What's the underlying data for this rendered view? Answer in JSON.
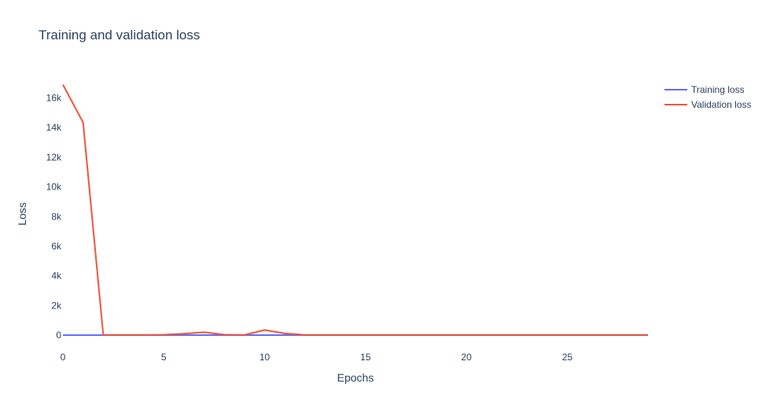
{
  "chart_data": {
    "type": "line",
    "title": "Training and validation loss",
    "xlabel": "Epochs",
    "ylabel": "Loss",
    "xlim": [
      0,
      29
    ],
    "ylim": [
      -950,
      17300
    ],
    "x_ticks": [
      0,
      5,
      10,
      15,
      20,
      25
    ],
    "y_ticks": [
      0,
      2000,
      4000,
      6000,
      8000,
      10000,
      12000,
      14000,
      16000
    ],
    "y_tick_labels": [
      "0",
      "2k",
      "4k",
      "6k",
      "8k",
      "10k",
      "12k",
      "14k",
      "16k"
    ],
    "grid": false,
    "legend_position": "top-right",
    "x": [
      0,
      1,
      2,
      3,
      4,
      5,
      6,
      7,
      8,
      9,
      10,
      11,
      12,
      13,
      14,
      15,
      16,
      17,
      18,
      19,
      20,
      21,
      22,
      23,
      24,
      25,
      26,
      27,
      28,
      29
    ],
    "series": [
      {
        "name": "Training loss",
        "color": "#636efa",
        "values": [
          5,
          5,
          5,
          5,
          5,
          5,
          5,
          5,
          5,
          5,
          5,
          5,
          5,
          5,
          5,
          5,
          5,
          5,
          5,
          5,
          5,
          5,
          5,
          5,
          5,
          5,
          5,
          5,
          5,
          5
        ]
      },
      {
        "name": "Validation loss",
        "color": "#ef553b",
        "values": [
          16900,
          14350,
          20,
          20,
          20,
          30,
          100,
          200,
          40,
          20,
          350,
          120,
          20,
          20,
          20,
          20,
          20,
          20,
          20,
          20,
          20,
          20,
          20,
          20,
          20,
          20,
          20,
          20,
          20,
          20
        ]
      }
    ]
  }
}
